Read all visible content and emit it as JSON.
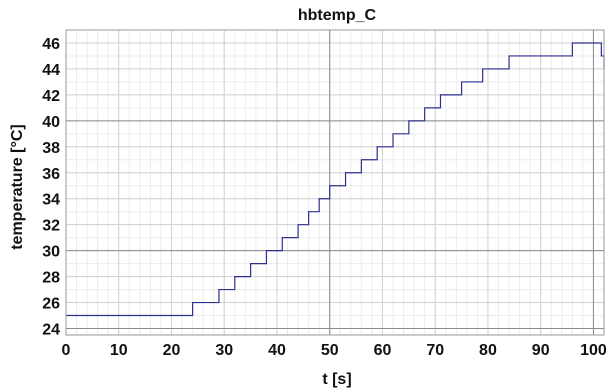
{
  "chart_data": {
    "type": "line",
    "title": "hbtemp_C",
    "xlabel": "t [s]",
    "ylabel": "temperature [°C]",
    "xlim": [
      0,
      102
    ],
    "ylim": [
      23.5,
      47
    ],
    "xticks": [
      0,
      10,
      20,
      30,
      40,
      50,
      60,
      70,
      80,
      90,
      100
    ],
    "yticks": [
      24,
      26,
      28,
      30,
      32,
      34,
      36,
      38,
      40,
      42,
      44,
      46
    ],
    "xtick_labels": [
      "0",
      "10",
      "20",
      "30",
      "40",
      "50",
      "60",
      "70",
      "80",
      "90",
      "100"
    ],
    "ytick_labels": [
      "24",
      "26",
      "28",
      "30",
      "32",
      "34",
      "36",
      "38",
      "40",
      "42",
      "44",
      "46"
    ],
    "major_grid_x": [
      0,
      50,
      100
    ],
    "major_grid_y": [
      24,
      30,
      40
    ],
    "grid": true,
    "line_color": "#2b2f8f",
    "series": [
      {
        "step": "post",
        "x": [
          0,
          23.5,
          24,
          29,
          32,
          35,
          38,
          41,
          44,
          46,
          48,
          50,
          53,
          56,
          59,
          62,
          65,
          68,
          71,
          75,
          79,
          84,
          96,
          101.5,
          102
        ],
        "y": [
          25,
          25,
          26,
          27,
          28,
          29,
          30,
          31,
          32,
          33,
          34,
          35,
          36,
          37,
          38,
          39,
          40,
          41,
          42,
          43,
          44,
          45,
          46,
          45,
          44
        ]
      }
    ]
  }
}
